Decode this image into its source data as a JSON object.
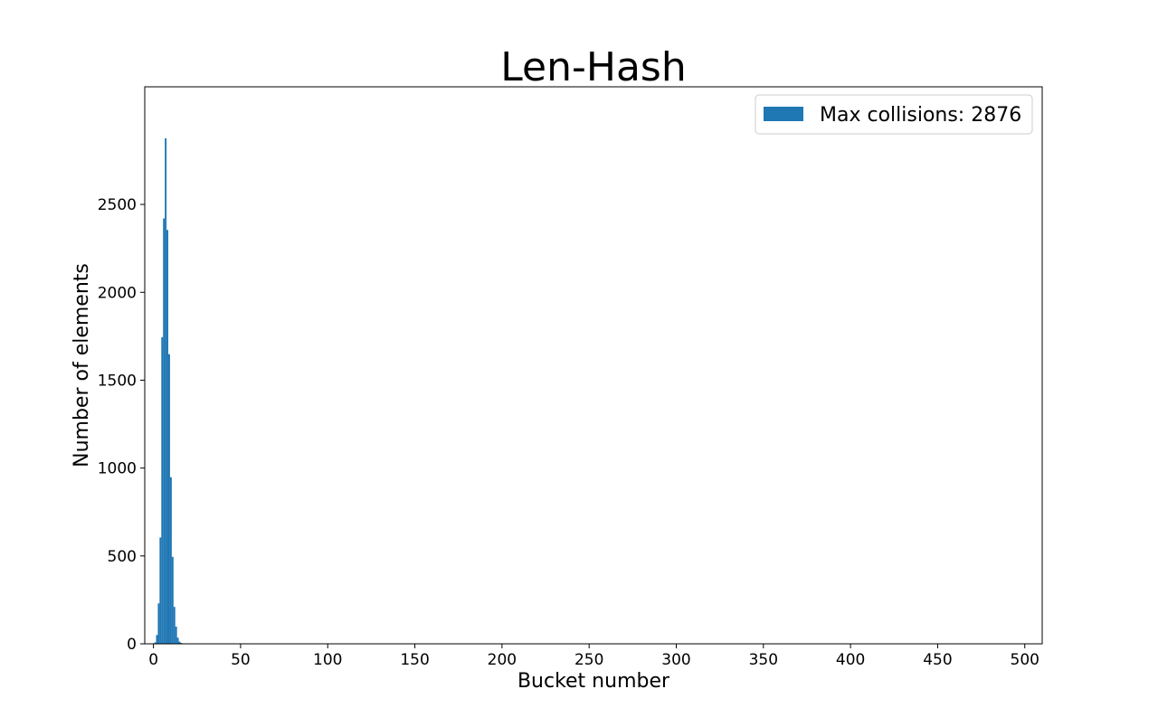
{
  "chart_data": {
    "type": "bar",
    "title": "Len-Hash",
    "xlabel": "Bucket number",
    "ylabel": "Number of elements",
    "xlim": [
      -5,
      510
    ],
    "ylim": [
      0,
      2876
    ],
    "x_ticks": [
      0,
      50,
      100,
      150,
      200,
      250,
      300,
      350,
      400,
      450,
      500
    ],
    "y_ticks": [
      0,
      500,
      1000,
      1500,
      2000,
      2500
    ],
    "grid": false,
    "legend_position": "top-right",
    "series": [
      {
        "name": "Max collisions: 2876",
        "color": "#1f77b4",
        "x": [
          0,
          1,
          2,
          3,
          4,
          5,
          6,
          7,
          8,
          9,
          10,
          11,
          12,
          13,
          14,
          15,
          16,
          17,
          18
        ],
        "values": [
          0,
          8,
          50,
          230,
          605,
          1745,
          2420,
          2876,
          2355,
          1648,
          948,
          495,
          210,
          98,
          35,
          12,
          5,
          2,
          1
        ]
      }
    ]
  }
}
